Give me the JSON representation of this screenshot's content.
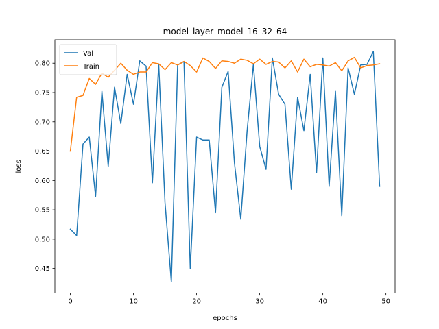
{
  "chart_data": {
    "type": "line",
    "title": "model_layer_model_16_32_64",
    "xlabel": "epochs",
    "ylabel": "loss",
    "xlim": [
      -2.45,
      51.45
    ],
    "ylim": [
      0.408,
      0.84
    ],
    "xticks": [
      0,
      10,
      20,
      30,
      40,
      50
    ],
    "yticks": [
      0.45,
      0.5,
      0.55,
      0.6,
      0.65,
      0.7,
      0.75,
      0.8
    ],
    "ytick_labels": [
      "0.45",
      "0.50",
      "0.55",
      "0.60",
      "0.65",
      "0.70",
      "0.75",
      "0.80"
    ],
    "grid": false,
    "legend_position": "upper-left",
    "x": [
      0,
      1,
      2,
      3,
      4,
      5,
      6,
      7,
      8,
      9,
      10,
      11,
      12,
      13,
      14,
      15,
      16,
      17,
      18,
      19,
      20,
      21,
      22,
      23,
      24,
      25,
      26,
      27,
      28,
      29,
      30,
      31,
      32,
      33,
      34,
      35,
      36,
      37,
      38,
      39,
      40,
      41,
      42,
      43,
      44,
      45,
      46,
      47,
      48,
      49
    ],
    "series": [
      {
        "name": "Val",
        "color": "#1f77b4",
        "values": [
          0.517,
          0.506,
          0.662,
          0.674,
          0.573,
          0.752,
          0.624,
          0.759,
          0.697,
          0.781,
          0.73,
          0.804,
          0.795,
          0.596,
          0.798,
          0.562,
          0.427,
          0.797,
          0.803,
          0.45,
          0.674,
          0.669,
          0.669,
          0.545,
          0.759,
          0.786,
          0.63,
          0.534,
          0.684,
          0.798,
          0.658,
          0.619,
          0.809,
          0.747,
          0.73,
          0.585,
          0.742,
          0.685,
          0.781,
          0.613,
          0.809,
          0.59,
          0.752,
          0.54,
          0.792,
          0.747,
          0.797,
          0.798,
          0.82,
          0.59
        ]
      },
      {
        "name": "Train",
        "color": "#ff7f0e",
        "values": [
          0.65,
          0.742,
          0.745,
          0.774,
          0.764,
          0.783,
          0.776,
          0.788,
          0.8,
          0.788,
          0.781,
          0.785,
          0.785,
          0.801,
          0.799,
          0.789,
          0.801,
          0.797,
          0.803,
          0.796,
          0.785,
          0.809,
          0.803,
          0.791,
          0.804,
          0.803,
          0.8,
          0.807,
          0.805,
          0.799,
          0.807,
          0.798,
          0.803,
          0.802,
          0.792,
          0.804,
          0.785,
          0.807,
          0.794,
          0.798,
          0.797,
          0.795,
          0.801,
          0.787,
          0.804,
          0.81,
          0.792,
          0.796,
          0.797,
          0.799
        ]
      }
    ]
  }
}
